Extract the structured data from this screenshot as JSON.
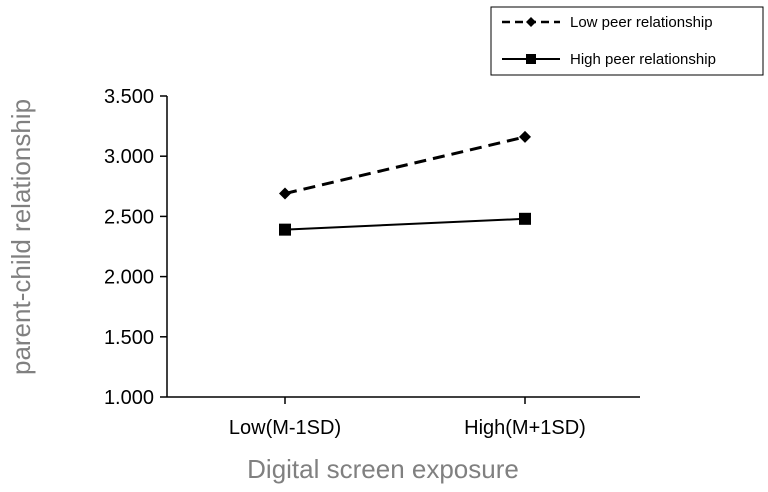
{
  "chart_data": {
    "type": "line",
    "title": "",
    "xlabel": "Digital screen exposure",
    "ylabel": "parent-child relationship",
    "categories": [
      "Low(M-1SD)",
      "High(M+1SD)"
    ],
    "y_ticks": [
      "1.000",
      "1.500",
      "2.000",
      "2.500",
      "3.000",
      "3.500"
    ],
    "ylim": [
      1.0,
      3.5
    ],
    "grid": false,
    "legend_position": "top-right",
    "series": [
      {
        "name": "Low peer relationship",
        "values": [
          2.69,
          3.16
        ],
        "line_style": "dashed",
        "marker": "diamond",
        "color": "#000000"
      },
      {
        "name": "High peer relationship",
        "values": [
          2.39,
          2.48
        ],
        "line_style": "solid",
        "marker": "square",
        "color": "#000000"
      }
    ]
  }
}
